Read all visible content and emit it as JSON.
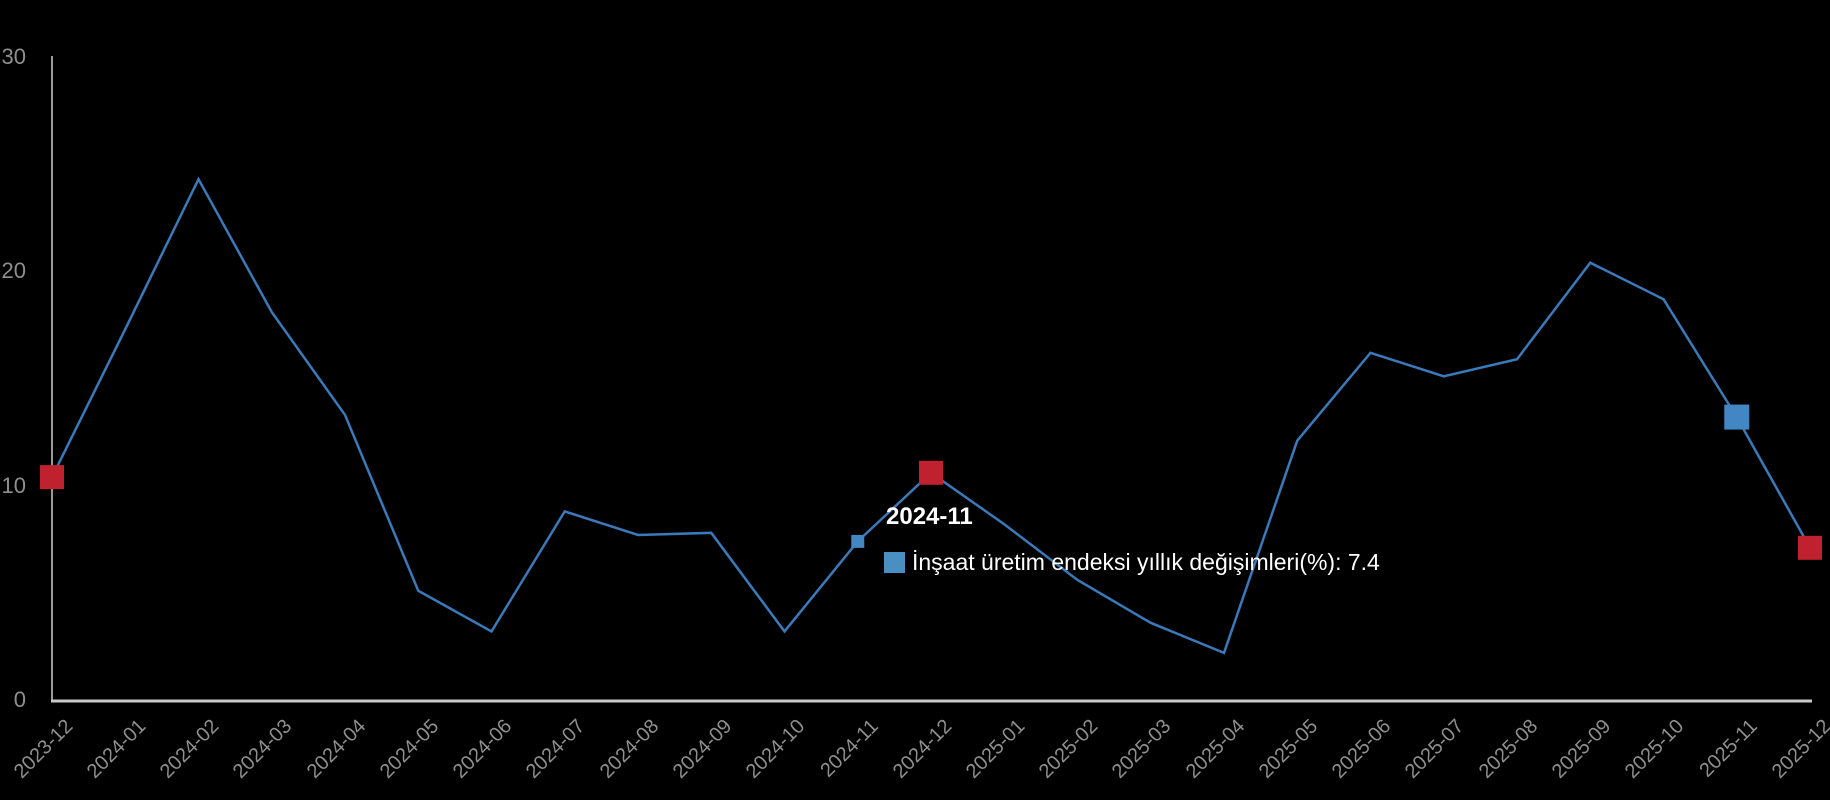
{
  "colors": {
    "background": "#000000",
    "line": "#3a79ba",
    "marker_blue": "#4286c3",
    "marker_red": "#c0212e",
    "axis_y": "#9a9a9a",
    "axis_x": "#c9c9c9",
    "tick_label": "#8f8f8f",
    "tooltip_text": "#ffffff",
    "tooltip_swatch": "#4a8fc2"
  },
  "tooltip": {
    "title": "2024-11",
    "text": "İnşaat üretim endeksi yıllık değişimleri(%): 7.4"
  },
  "chart_data": {
    "type": "line",
    "title": "",
    "xlabel": "",
    "ylabel": "",
    "ylim": [
      0,
      30
    ],
    "y_ticks": [
      0,
      10,
      20,
      30
    ],
    "grid": false,
    "legend_position": "none",
    "categories": [
      "2023-12",
      "2024-01",
      "2024-02",
      "2024-03",
      "2024-04",
      "2024-05",
      "2024-06",
      "2024-07",
      "2024-08",
      "2024-09",
      "2024-10",
      "2024-11",
      "2024-12",
      "2025-01",
      "2025-02",
      "2025-03",
      "2025-04",
      "2025-05",
      "2025-06",
      "2025-07",
      "2025-08",
      "2025-09",
      "2025-10",
      "2025-11",
      "2025-12"
    ],
    "series": [
      {
        "name": "İnşaat üretim endeksi yıllık değişimleri(%)",
        "values": [
          10.4,
          17.3,
          24.3,
          18.1,
          13.3,
          5.1,
          3.2,
          8.8,
          7.7,
          7.8,
          3.2,
          7.4,
          10.6,
          8.2,
          5.6,
          3.6,
          2.2,
          12.1,
          16.2,
          15.1,
          15.9,
          20.4,
          18.7,
          13.2,
          7.1
        ]
      }
    ],
    "highlighted_point": {
      "category": "2024-11",
      "value": 7.4
    },
    "markers": [
      {
        "category": "2023-12",
        "color": "red",
        "size": 24
      },
      {
        "category": "2024-11",
        "color": "blue",
        "size": 13
      },
      {
        "category": "2024-12",
        "color": "red",
        "size": 24
      },
      {
        "category": "2025-11",
        "color": "blue",
        "size": 25
      },
      {
        "category": "2025-12",
        "color": "red",
        "size": 24
      }
    ]
  }
}
